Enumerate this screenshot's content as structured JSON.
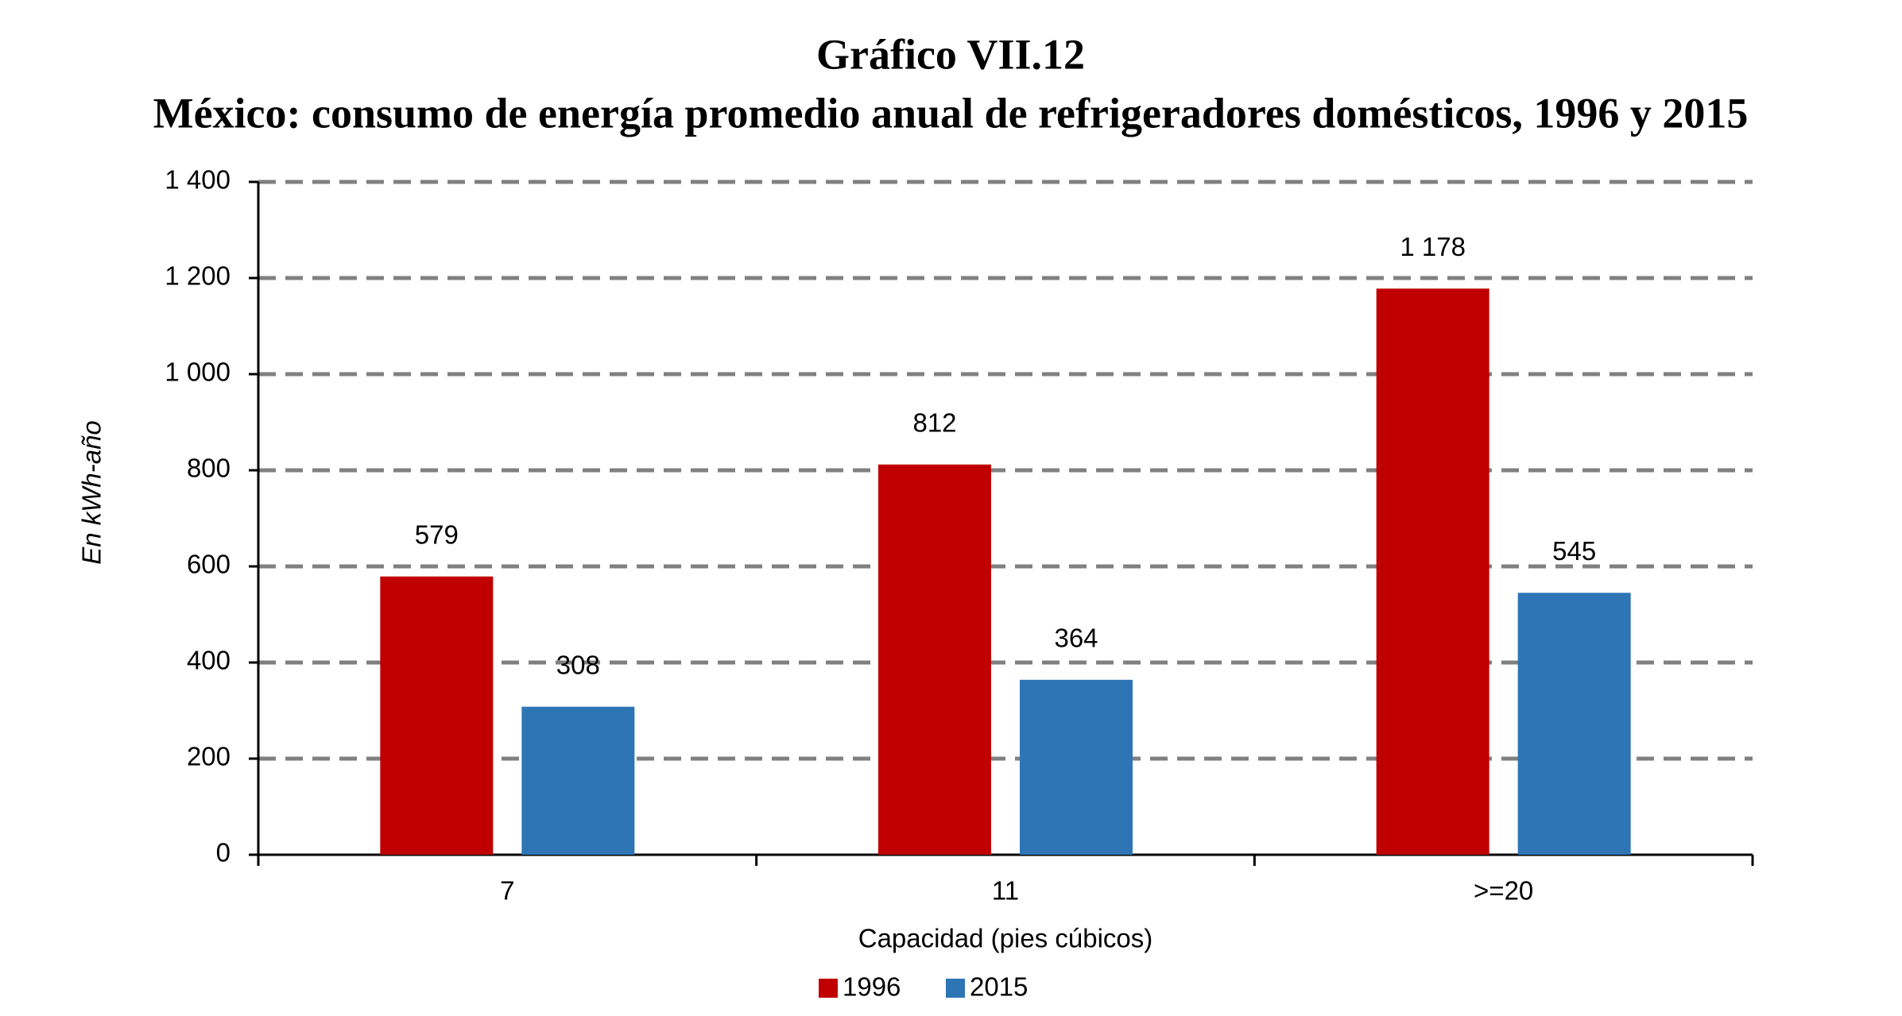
{
  "chart_data": {
    "type": "bar",
    "title": "Gráfico VII.12",
    "subtitle": "México: consumo de energía promedio anual de refrigeradores domésticos, 1996 y 2015",
    "y_label": "En kWh-año",
    "x_label": "Capacidad (pies cúbicos)",
    "categories": [
      "7",
      "11",
      ">=20"
    ],
    "series": [
      {
        "name": "1996",
        "color": "#c00000",
        "values": [
          579,
          812,
          1178
        ],
        "value_labels": [
          "579",
          "812",
          "1 178"
        ]
      },
      {
        "name": "2015",
        "color": "#2e75b6",
        "values": [
          308,
          364,
          545
        ]
      }
    ],
    "ylim": [
      0,
      1400
    ],
    "yticks": [
      0,
      200,
      400,
      600,
      800,
      {
        "value": 1000,
        "label": "1 000"
      },
      {
        "value": 1200,
        "label": "1 200"
      },
      {
        "value": 1400,
        "label": "1 400"
      }
    ],
    "grid": true,
    "legend": "bottom"
  }
}
